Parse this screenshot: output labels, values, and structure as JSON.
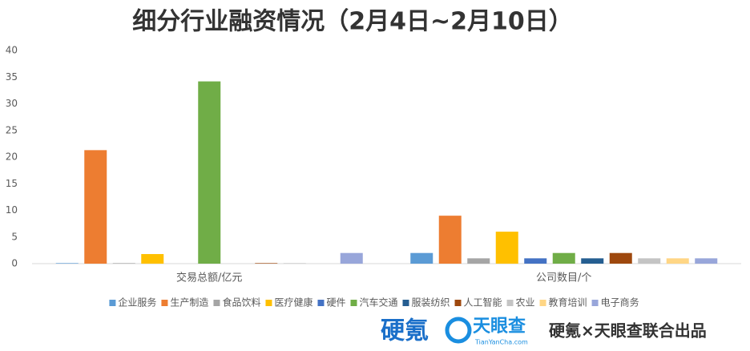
{
  "chart_data": {
    "type": "bar",
    "title": "细分行业融资情况（2月4日~2月10日）",
    "categories": [
      "交易总额/亿元",
      "公司数目/个"
    ],
    "series": [
      {
        "name": "企业服务",
        "color": "#5b9bd5",
        "values": [
          0.1,
          2
        ]
      },
      {
        "name": "生产制造",
        "color": "#ed7d31",
        "values": [
          21.3,
          9
        ]
      },
      {
        "name": "食品饮料",
        "color": "#a5a5a5",
        "values": [
          0.1,
          1
        ]
      },
      {
        "name": "医疗健康",
        "color": "#ffc000",
        "values": [
          1.8,
          6
        ]
      },
      {
        "name": "硬件",
        "color": "#4472c4",
        "values": [
          0,
          1
        ]
      },
      {
        "name": "汽车交通",
        "color": "#70ad47",
        "values": [
          34.2,
          2
        ]
      },
      {
        "name": "服装纺织",
        "color": "#255e91",
        "values": [
          0,
          1
        ]
      },
      {
        "name": "人工智能",
        "color": "#9e480e",
        "values": [
          0.1,
          2
        ]
      },
      {
        "name": "农业",
        "color": "#c4c4c4",
        "values": [
          0.1,
          1
        ]
      },
      {
        "name": "教育培训",
        "color": "#ffd685",
        "values": [
          0,
          1
        ]
      },
      {
        "name": "电子商务",
        "color": "#98a6da",
        "values": [
          2,
          1
        ]
      }
    ],
    "ylim": [
      0,
      40
    ],
    "yticks": [
      0,
      5,
      10,
      15,
      20,
      25,
      30,
      35,
      40
    ],
    "grid": false,
    "legend": "bottom"
  },
  "footer": {
    "logo_left": "硬氪",
    "logo_right": "天眼查",
    "logo_right_sub": "TianYanCha.com",
    "credit": "硬氪×天眼查联合出品"
  }
}
